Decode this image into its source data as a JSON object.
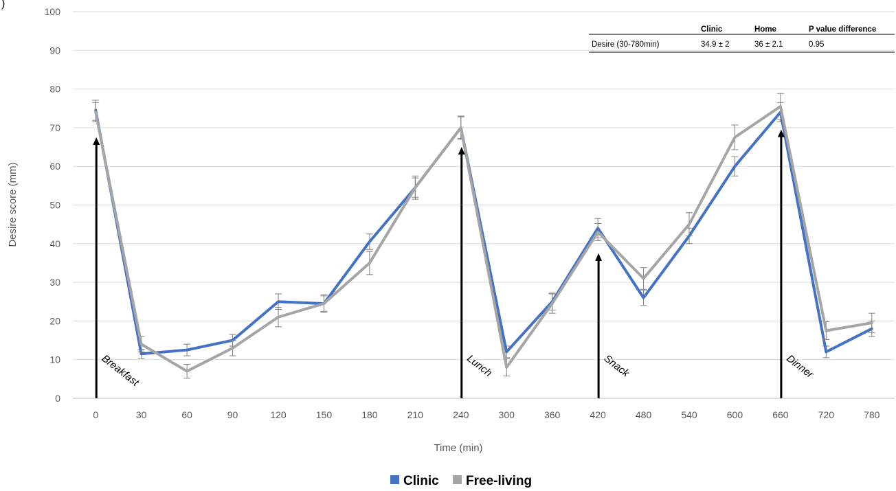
{
  "corner_label": ")",
  "chart_data": {
    "type": "line",
    "xlabel": "Time (min)",
    "ylabel": "Desire score (mm)",
    "ylim": [
      0,
      100
    ],
    "yticks": [
      0,
      10,
      20,
      30,
      40,
      50,
      60,
      70,
      80,
      90,
      100
    ],
    "grid": true,
    "legend_position": "bottom",
    "categories": [
      "0",
      "30",
      "60",
      "90",
      "120",
      "150",
      "180",
      "210",
      "240",
      "300",
      "360",
      "420",
      "480",
      "540",
      "600",
      "660",
      "720",
      "780"
    ],
    "series": [
      {
        "name": "Clinic",
        "color": "#4472c4",
        "values": [
          74.5,
          11.5,
          12.5,
          15,
          25,
          24.5,
          40.5,
          54.5,
          70,
          12,
          25,
          44,
          26,
          42,
          60,
          74,
          12,
          18
        ],
        "errors": [
          2.6,
          1.2,
          1.5,
          1.5,
          2,
          2,
          2,
          2.5,
          2.8,
          1.5,
          2.2,
          2.5,
          2,
          2,
          2.5,
          2.5,
          1.5,
          2
        ]
      },
      {
        "name": "Free-living",
        "color": "#a5a5a5",
        "values": [
          74,
          14,
          7,
          13,
          21,
          24.5,
          35,
          54.5,
          70,
          8,
          24.5,
          43,
          31,
          45,
          67.5,
          75.5,
          17.5,
          19.5
        ],
        "errors": [
          2.5,
          2,
          1.8,
          2,
          2.5,
          2.3,
          3,
          3,
          3,
          2.2,
          2.5,
          2.2,
          2.8,
          3,
          3.2,
          3.3,
          2.3,
          2.5
        ]
      }
    ],
    "annotations": [
      {
        "label": "Breakfast",
        "category_index": 0,
        "arrow_top": 67.5
      },
      {
        "label": "Lunch",
        "category_index": 8,
        "arrow_top": 65
      },
      {
        "label": "Snack",
        "category_index": 11,
        "arrow_top": 37.5
      },
      {
        "label": "Dinner",
        "category_index": 15,
        "arrow_top": 69.5
      }
    ],
    "inset_table": {
      "headers": [
        "",
        "Clinic",
        "Home",
        "P value difference"
      ],
      "rows": [
        [
          "Desire (30-780min)",
          "34.9 ± 2",
          "36 ± 2.1",
          "0.95"
        ]
      ]
    }
  }
}
